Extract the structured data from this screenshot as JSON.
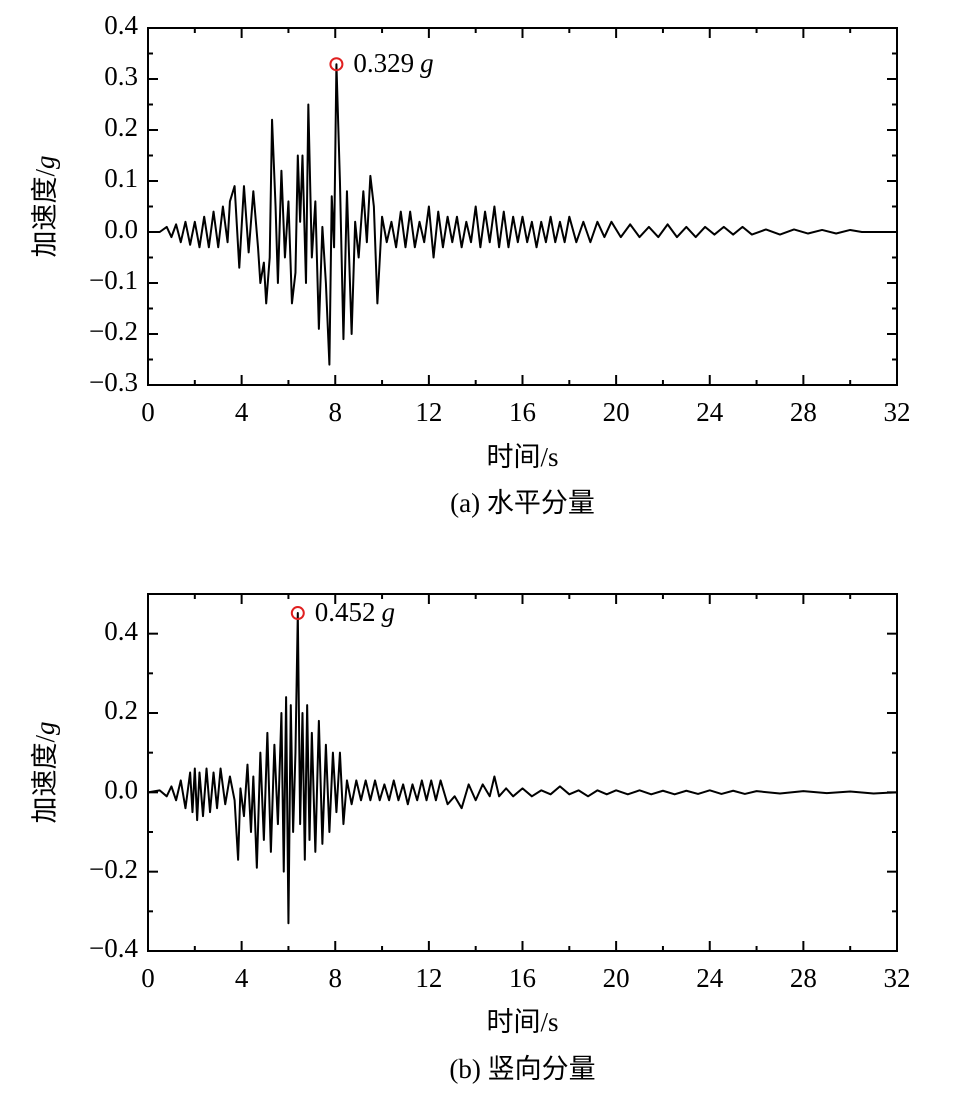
{
  "chart_data": [
    {
      "type": "line",
      "caption": "(a) 水平分量",
      "xlabel": "时间/s",
      "ylabel": "加速度/",
      "ylabel_italic": "g",
      "xlim": [
        0,
        32
      ],
      "xticks": [
        0,
        4,
        8,
        12,
        16,
        20,
        24,
        28,
        32
      ],
      "ylim": [
        -0.3,
        0.4
      ],
      "yticks": [
        {
          "value": -0.3,
          "label": "−0.3"
        },
        {
          "value": -0.2,
          "label": "−0.2"
        },
        {
          "value": -0.1,
          "label": "−0.1"
        },
        {
          "value": 0,
          "label": "0.0"
        },
        0.1,
        0.2,
        0.3,
        0.4
      ],
      "x": [
        0,
        0.5,
        0.8,
        1.0,
        1.2,
        1.4,
        1.6,
        1.8,
        2.0,
        2.2,
        2.4,
        2.6,
        2.8,
        3.0,
        3.2,
        3.4,
        3.5,
        3.7,
        3.9,
        4.1,
        4.3,
        4.5,
        4.7,
        4.8,
        4.95,
        5.05,
        5.2,
        5.3,
        5.45,
        5.55,
        5.7,
        5.85,
        6.0,
        6.15,
        6.3,
        6.4,
        6.5,
        6.6,
        6.75,
        6.85,
        7.0,
        7.15,
        7.3,
        7.45,
        7.6,
        7.75,
        7.85,
        7.95,
        8.05,
        8.2,
        8.35,
        8.5,
        8.7,
        8.85,
        9.0,
        9.2,
        9.35,
        9.5,
        9.65,
        9.8,
        10.0,
        10.2,
        10.4,
        10.6,
        10.8,
        11.0,
        11.2,
        11.4,
        11.6,
        11.8,
        12.0,
        12.2,
        12.4,
        12.6,
        12.8,
        13.0,
        13.2,
        13.4,
        13.6,
        13.8,
        14.0,
        14.2,
        14.4,
        14.6,
        14.8,
        15.0,
        15.2,
        15.4,
        15.6,
        15.8,
        16.0,
        16.2,
        16.4,
        16.6,
        16.8,
        17.0,
        17.2,
        17.4,
        17.6,
        17.8,
        18.0,
        18.3,
        18.6,
        18.9,
        19.2,
        19.5,
        19.8,
        20.2,
        20.6,
        21.0,
        21.4,
        21.8,
        22.2,
        22.6,
        23.0,
        23.4,
        23.8,
        24.2,
        24.6,
        25.0,
        25.4,
        25.8,
        26.4,
        27.0,
        27.6,
        28.2,
        28.8,
        29.4,
        30.0,
        30.5,
        32
      ],
      "series": [
        {
          "color": "#000000",
          "values": [
            0,
            0,
            0.01,
            -0.01,
            0.015,
            -0.02,
            0.02,
            -0.025,
            0.02,
            -0.03,
            0.03,
            -0.03,
            0.04,
            -0.03,
            0.05,
            -0.02,
            0.06,
            0.09,
            -0.07,
            0.09,
            -0.04,
            0.08,
            -0.03,
            -0.1,
            -0.06,
            -0.14,
            -0.05,
            0.22,
            0.05,
            -0.1,
            0.12,
            -0.05,
            0.06,
            -0.14,
            -0.08,
            0.15,
            0.02,
            0.15,
            -0.1,
            0.25,
            -0.05,
            0.06,
            -0.19,
            0.01,
            -0.1,
            -0.26,
            0.07,
            -0.03,
            0.329,
            0.1,
            -0.21,
            0.08,
            -0.2,
            0.02,
            -0.05,
            0.08,
            -0.02,
            0.11,
            0.05,
            -0.14,
            0.03,
            -0.02,
            0.02,
            -0.03,
            0.04,
            -0.03,
            0.04,
            -0.03,
            0.02,
            -0.02,
            0.05,
            -0.05,
            0.04,
            -0.03,
            0.03,
            -0.02,
            0.03,
            -0.03,
            0.02,
            -0.02,
            0.05,
            -0.03,
            0.04,
            -0.02,
            0.05,
            -0.03,
            0.04,
            -0.03,
            0.03,
            -0.02,
            0.03,
            -0.02,
            0.02,
            -0.03,
            0.02,
            -0.02,
            0.03,
            -0.02,
            0.02,
            -0.02,
            0.03,
            -0.02,
            0.02,
            -0.02,
            0.02,
            -0.01,
            0.02,
            -0.01,
            0.015,
            -0.01,
            0.01,
            -0.01,
            0.015,
            -0.01,
            0.01,
            -0.01,
            0.01,
            -0.005,
            0.01,
            -0.005,
            0.01,
            -0.005,
            0.005,
            -0.005,
            0.005,
            -0.003,
            0.004,
            -0.003,
            0.004,
            0,
            0
          ]
        }
      ],
      "annotations": [
        {
          "x": 8.05,
          "y": 0.329,
          "label": "0.329",
          "unit": "g",
          "color": "#e02020"
        }
      ]
    },
    {
      "type": "line",
      "caption": "(b) 竖向分量",
      "xlabel": "时间/s",
      "ylabel": "加速度/",
      "ylabel_italic": "g",
      "xlim": [
        0,
        32
      ],
      "xticks": [
        0,
        4,
        8,
        12,
        16,
        20,
        24,
        28,
        32
      ],
      "ylim": [
        -0.4,
        0.5
      ],
      "yticks": [
        {
          "value": -0.4,
          "label": "−0.4"
        },
        {
          "value": -0.2,
          "label": "−0.2"
        },
        {
          "value": 0,
          "label": "0.0"
        },
        0.2,
        0.4
      ],
      "x": [
        0,
        0.5,
        0.8,
        1.0,
        1.2,
        1.4,
        1.6,
        1.8,
        1.9,
        2.0,
        2.1,
        2.2,
        2.35,
        2.5,
        2.65,
        2.8,
        2.95,
        3.1,
        3.3,
        3.5,
        3.7,
        3.85,
        3.95,
        4.1,
        4.25,
        4.4,
        4.5,
        4.65,
        4.8,
        4.95,
        5.1,
        5.25,
        5.4,
        5.55,
        5.7,
        5.8,
        5.9,
        6.0,
        6.1,
        6.2,
        6.3,
        6.4,
        6.5,
        6.6,
        6.7,
        6.8,
        6.9,
        7.0,
        7.15,
        7.3,
        7.45,
        7.6,
        7.75,
        7.9,
        8.05,
        8.2,
        8.35,
        8.5,
        8.7,
        8.9,
        9.1,
        9.3,
        9.5,
        9.7,
        9.9,
        10.1,
        10.3,
        10.5,
        10.7,
        10.9,
        11.1,
        11.3,
        11.5,
        11.7,
        11.9,
        12.1,
        12.3,
        12.5,
        12.8,
        13.1,
        13.4,
        13.7,
        14.0,
        14.3,
        14.6,
        14.8,
        15.0,
        15.3,
        15.6,
        16.0,
        16.4,
        16.8,
        17.2,
        17.6,
        18.0,
        18.4,
        18.8,
        19.2,
        19.6,
        20.0,
        20.5,
        21.0,
        21.5,
        22,
        22.5,
        23,
        23.5,
        24,
        24.5,
        25,
        25.5,
        26,
        27,
        28,
        29,
        30,
        31,
        32
      ],
      "series": [
        {
          "color": "#000000",
          "values": [
            0,
            0.005,
            -0.01,
            0.015,
            -0.02,
            0.03,
            -0.04,
            0.05,
            -0.05,
            0.06,
            -0.07,
            0.05,
            -0.06,
            0.06,
            -0.05,
            0.05,
            -0.04,
            0.06,
            -0.03,
            0.04,
            -0.02,
            -0.17,
            0.01,
            -0.06,
            0.07,
            -0.1,
            0.04,
            -0.19,
            0.1,
            -0.12,
            0.15,
            -0.15,
            0.12,
            -0.08,
            0.2,
            -0.2,
            0.24,
            -0.33,
            0.22,
            -0.1,
            0.1,
            0.452,
            -0.08,
            0.2,
            -0.17,
            0.22,
            -0.12,
            0.15,
            -0.15,
            0.18,
            -0.13,
            0.12,
            -0.1,
            0.1,
            -0.05,
            0.1,
            -0.08,
            0.03,
            -0.03,
            0.03,
            -0.02,
            0.03,
            -0.02,
            0.03,
            -0.02,
            0.02,
            -0.02,
            0.03,
            -0.02,
            0.02,
            -0.03,
            0.02,
            -0.02,
            0.03,
            -0.02,
            0.03,
            -0.02,
            0.03,
            -0.03,
            -0.01,
            -0.04,
            0.02,
            -0.02,
            0.02,
            -0.01,
            0.04,
            -0.01,
            0.01,
            -0.01,
            0.01,
            -0.01,
            0.005,
            -0.005,
            0.015,
            -0.005,
            0.005,
            -0.01,
            0.005,
            -0.005,
            0.005,
            -0.005,
            0.005,
            -0.005,
            0.004,
            -0.005,
            0.004,
            -0.004,
            0.005,
            -0.004,
            0.004,
            -0.004,
            0.003,
            -0.003,
            0.003,
            -0.002,
            0.002,
            -0.003,
            0
          ]
        }
      ],
      "annotations": [
        {
          "x": 6.4,
          "y": 0.452,
          "label": "0.452",
          "unit": "g",
          "color": "#e02020"
        }
      ]
    }
  ]
}
